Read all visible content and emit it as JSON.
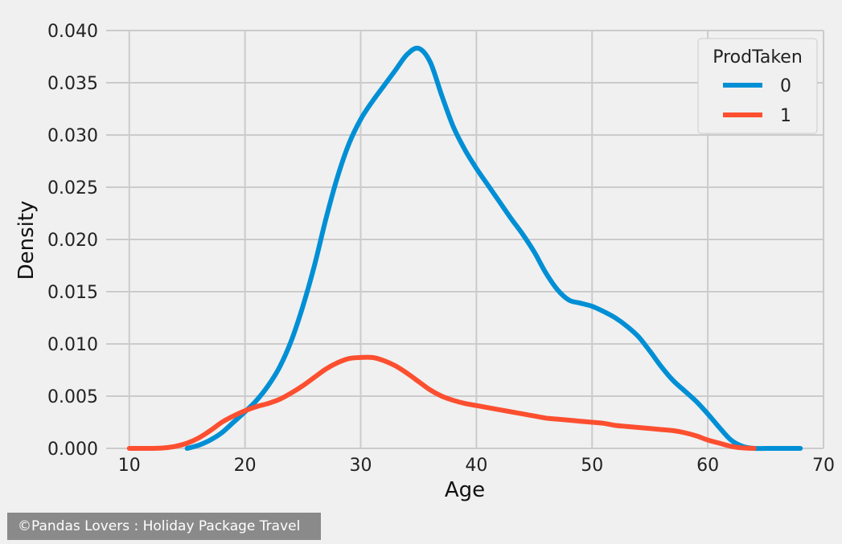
{
  "chart_data": {
    "type": "line",
    "title": "",
    "xlabel": "Age",
    "ylabel": "Density",
    "xlim": [
      8,
      70
    ],
    "ylim": [
      0,
      0.04
    ],
    "xticks": [
      10,
      20,
      30,
      40,
      50,
      60,
      70
    ],
    "yticks": [
      0.0,
      0.005,
      0.01,
      0.015,
      0.02,
      0.025,
      0.03,
      0.035,
      0.04
    ],
    "grid": true,
    "legend": {
      "title": "ProdTaken",
      "placement": "top-right"
    },
    "series": [
      {
        "name": "0",
        "color": "#008fd5",
        "x": [
          15,
          16,
          17,
          18,
          19,
          20,
          21,
          22,
          23,
          24,
          25,
          26,
          27,
          28,
          29,
          30,
          31,
          32,
          33,
          34,
          35,
          36,
          37,
          38,
          39,
          40,
          41,
          42,
          43,
          44,
          45,
          46,
          47,
          48,
          49,
          50,
          51,
          52,
          53,
          54,
          55,
          56,
          57,
          58,
          59,
          60,
          61,
          62,
          63,
          64,
          65,
          66,
          67,
          68
        ],
        "y": [
          0.0,
          0.0003,
          0.0008,
          0.0015,
          0.0025,
          0.0035,
          0.0046,
          0.006,
          0.0078,
          0.0103,
          0.0136,
          0.0175,
          0.022,
          0.026,
          0.0292,
          0.0315,
          0.0332,
          0.0347,
          0.0362,
          0.0377,
          0.0383,
          0.037,
          0.0338,
          0.0308,
          0.0286,
          0.0268,
          0.0252,
          0.0236,
          0.022,
          0.0205,
          0.0188,
          0.0168,
          0.0152,
          0.0142,
          0.0139,
          0.0136,
          0.0131,
          0.0125,
          0.0117,
          0.0107,
          0.0093,
          0.0078,
          0.0065,
          0.0055,
          0.0045,
          0.0033,
          0.002,
          0.0008,
          0.0002,
          0.0,
          0.0,
          0.0,
          0.0,
          0.0
        ]
      },
      {
        "name": "1",
        "color": "#fc4f30",
        "x": [
          10,
          11,
          12,
          13,
          14,
          15,
          16,
          17,
          18,
          19,
          20,
          21,
          22,
          23,
          24,
          25,
          26,
          27,
          28,
          29,
          30,
          31,
          32,
          33,
          34,
          35,
          36,
          37,
          38,
          39,
          40,
          41,
          42,
          43,
          44,
          45,
          46,
          47,
          48,
          49,
          50,
          51,
          52,
          53,
          54,
          55,
          56,
          57,
          58,
          59,
          60,
          61,
          62,
          63,
          64
        ],
        "y": [
          0.0,
          0.0,
          0.0,
          5e-05,
          0.0002,
          0.0005,
          0.001,
          0.0017,
          0.0025,
          0.0031,
          0.0036,
          0.004,
          0.0043,
          0.0047,
          0.0053,
          0.006,
          0.0068,
          0.0076,
          0.0082,
          0.0086,
          0.0087,
          0.0087,
          0.0084,
          0.0079,
          0.0072,
          0.0064,
          0.0056,
          0.005,
          0.0046,
          0.0043,
          0.0041,
          0.0039,
          0.0037,
          0.0035,
          0.0033,
          0.0031,
          0.0029,
          0.0028,
          0.0027,
          0.0026,
          0.0025,
          0.0024,
          0.0022,
          0.0021,
          0.002,
          0.0019,
          0.0018,
          0.0017,
          0.0015,
          0.0012,
          0.0008,
          0.0005,
          0.0002,
          5e-05,
          0.0
        ]
      }
    ]
  },
  "watermark": "©Pandas Lovers : Holiday Package Travel",
  "colors": {
    "background": "#f0f0f0",
    "grid": "#cbcbcb"
  }
}
